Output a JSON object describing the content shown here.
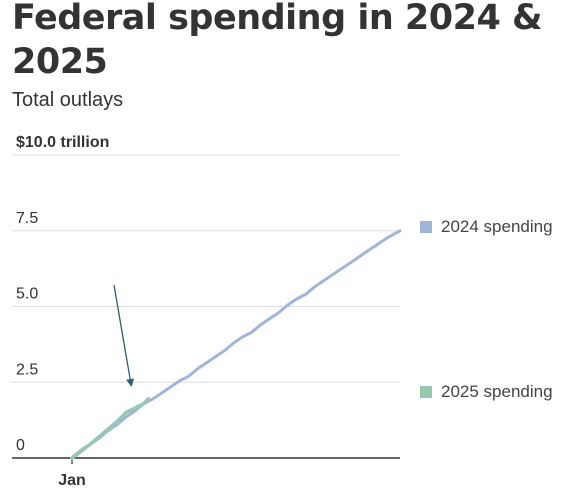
{
  "title": "Federal spending in 2024 & 2025",
  "subtitle": "Total outlays",
  "colors": {
    "series_2024": "#9db6da",
    "series_2025": "#95c8b0",
    "annotation_arrow": "#2a5f73",
    "grid": "#dddddd",
    "axis": "#333333"
  },
  "chart_data": {
    "type": "line",
    "title": "Federal spending in 2024 & 2025",
    "subtitle": "Total outlays",
    "ylim": [
      0,
      10
    ],
    "yunit": "trillion dollars",
    "ytick_labels": [
      {
        "value": 0,
        "label": "0"
      },
      {
        "value": 2.5,
        "label": "2.5"
      },
      {
        "value": 5,
        "label": "5.0"
      },
      {
        "value": 7.5,
        "label": "7.5"
      },
      {
        "value": 10,
        "label": "$10.0 trillion"
      }
    ],
    "xlim": [
      0,
      365
    ],
    "xtick_labels": [
      {
        "value": 0,
        "label": "Jan"
      }
    ],
    "grid": true,
    "legend_position": "right",
    "series": [
      {
        "name": "2024 spending",
        "color": "#9db6da",
        "x": [
          0,
          10,
          20,
          30,
          40,
          50,
          60,
          70,
          80,
          90,
          100,
          110,
          120,
          130,
          140,
          150,
          160,
          170,
          180,
          190,
          200,
          210,
          220,
          230,
          240,
          250,
          260,
          270,
          280,
          290,
          300,
          310,
          320,
          330,
          340,
          350,
          360,
          365
        ],
        "values": [
          0.0,
          0.2,
          0.45,
          0.65,
          0.9,
          1.1,
          1.35,
          1.55,
          1.8,
          1.95,
          2.15,
          2.35,
          2.55,
          2.7,
          2.95,
          3.15,
          3.35,
          3.55,
          3.8,
          4.0,
          4.15,
          4.4,
          4.6,
          4.8,
          5.05,
          5.25,
          5.4,
          5.65,
          5.85,
          6.05,
          6.25,
          6.45,
          6.65,
          6.85,
          7.05,
          7.25,
          7.42,
          7.5
        ]
      },
      {
        "name": "2025 spending",
        "color": "#95c8b0",
        "x": [
          0,
          10,
          20,
          30,
          40,
          50,
          60,
          70,
          80,
          85
        ],
        "values": [
          0.0,
          0.25,
          0.45,
          0.7,
          0.95,
          1.2,
          1.5,
          1.65,
          1.8,
          1.95
        ]
      }
    ]
  }
}
